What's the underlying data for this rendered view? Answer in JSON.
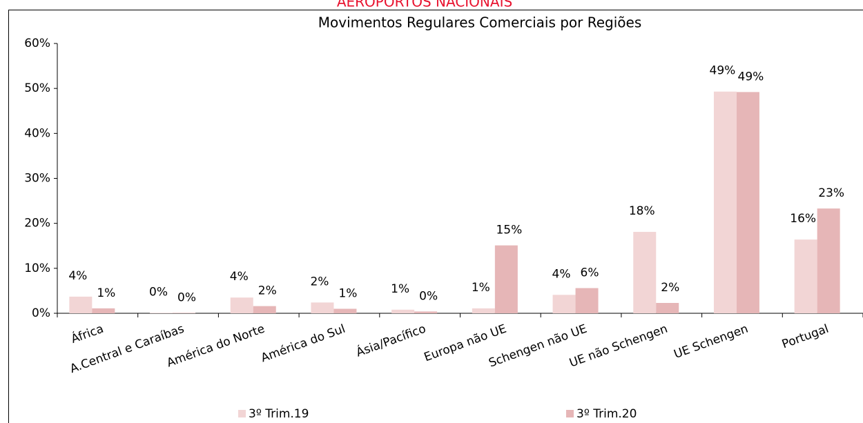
{
  "chart_data": {
    "type": "bar",
    "header": "AEROPORTOS NACIONAIS",
    "title": "Movimentos Regulares Comerciais por Regiões",
    "categories": [
      "África",
      "A.Central e Caraíbas",
      "América do Norte",
      "América do Sul",
      "Ásia/Pacífico",
      "Europa não UE",
      "Schengen não UE",
      "UE não Schengen",
      "UE Schengen",
      "Portugal"
    ],
    "series": [
      {
        "name": "3º Trim.19",
        "color": "#f2d5d5",
        "values": [
          3.7,
          0.1,
          3.5,
          2.4,
          0.8,
          1.1,
          4.1,
          18.1,
          49.3,
          16.4
        ],
        "value_labels": [
          "4%",
          "0%",
          "4%",
          "2%",
          "1%",
          "1%",
          "4%",
          "18%",
          "49%",
          "16%"
        ]
      },
      {
        "name": "3º Trim.20",
        "color": "#e6b6b7",
        "values": [
          1.1,
          0.1,
          1.6,
          1.0,
          0.4,
          15.1,
          5.6,
          2.3,
          49.2,
          23.3
        ],
        "value_labels": [
          "1%",
          "0%",
          "2%",
          "1%",
          "0%",
          "15%",
          "6%",
          "2%",
          "49%",
          "23%"
        ]
      }
    ],
    "ylim": [
      0,
      60
    ],
    "yticks": [
      {
        "value": 0,
        "label": "0%"
      },
      {
        "value": 10,
        "label": "10%"
      },
      {
        "value": 20,
        "label": "20%"
      },
      {
        "value": 30,
        "label": "30%"
      },
      {
        "value": 40,
        "label": "40%"
      },
      {
        "value": 50,
        "label": "50%"
      },
      {
        "value": 60,
        "label": "60%"
      }
    ],
    "grid": false,
    "legend": "bottom"
  }
}
